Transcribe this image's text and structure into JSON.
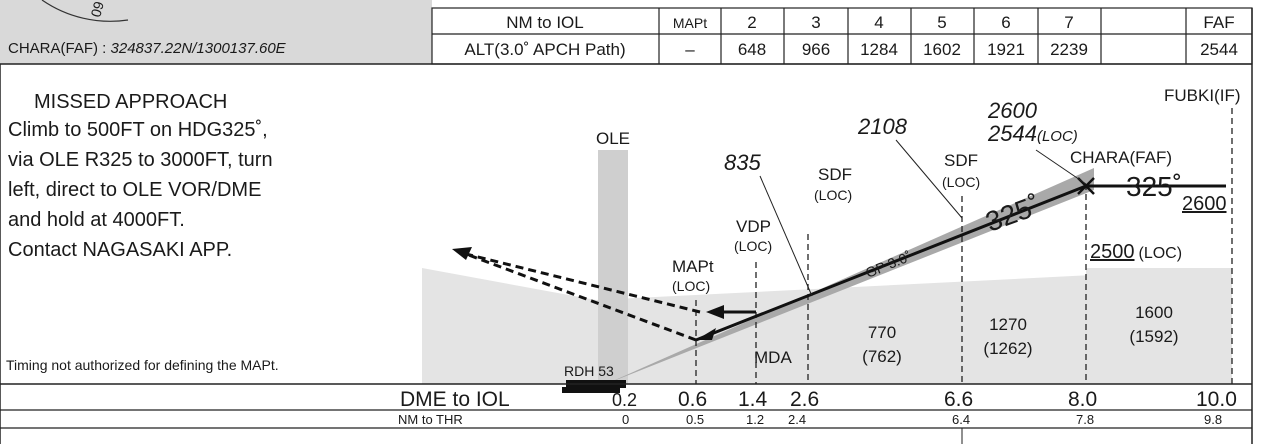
{
  "header": {
    "faf_coordinate_label": "CHARA(FAF) : ",
    "faf_coordinate_value": "324837.22N/1300137.60E",
    "compass_fragment": "09"
  },
  "approach_table": {
    "row1_label": "NM to IOL",
    "row2_label": "ALT(3.0˚ APCH Path)",
    "columns": [
      "MAPt",
      "2",
      "3",
      "4",
      "5",
      "6",
      "7",
      "FAF"
    ],
    "altitudes": [
      "–",
      "648",
      "966",
      "1284",
      "1602",
      "1921",
      "2239",
      "2544"
    ]
  },
  "missed_approach": {
    "title": "MISSED APPROACH",
    "lines": [
      "Climb to 500FT on HDG325˚,",
      "via OLE R325 to 3000FT, turn",
      "left, direct to OLE VOR/DME",
      "and hold at 4000FT.",
      "Contact NAGASAKI APP."
    ]
  },
  "timing_note": "Timing not authorized for defining the MAPt.",
  "profile": {
    "fix_fubki": "FUBKI(IF)",
    "fix_chara": "CHARA(FAF)",
    "ole": "OLE",
    "alt_835": "835",
    "alt_2108": "2108",
    "alt_2600": "2600",
    "alt_2544": "2544",
    "alt_2544_suffix": "(LOC)",
    "sdf": "SDF",
    "loc": "(LOC)",
    "vdp": "VDP",
    "mapt": "MAPt",
    "course_main": "325˚",
    "course_inbound": "325˚",
    "alt_2600_right": "2600",
    "alt_2500": "2500",
    "alt_2500_suffix": "(LOC)",
    "gp": "GP 3.0˚",
    "mda": "MDA",
    "rdh": "RDH 53",
    "obstacle_770": "770",
    "obstacle_770_paren": "(762)",
    "obstacle_1270": "1270",
    "obstacle_1270_paren": "(1262)",
    "obstacle_1600": "1600",
    "obstacle_1600_paren": "(1592)"
  },
  "dme_scale": {
    "label": "DME to IOL",
    "values": [
      "0.2",
      "0.6",
      "1.4",
      "2.6",
      "6.6",
      "8.0",
      "10.0"
    ]
  },
  "thr_scale": {
    "label": "NM to THR",
    "values": [
      "0",
      "0.5",
      "1.2",
      "2.4",
      "6.4",
      "7.8",
      "9.8"
    ]
  }
}
